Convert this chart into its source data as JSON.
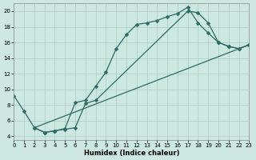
{
  "xlabel": "Humidex (Indice chaleur)",
  "bg_color": "#cce8e0",
  "grid_color": "#aaccc4",
  "line_color": "#2d6b65",
  "xlim": [
    0,
    23
  ],
  "ylim": [
    3.5,
    21
  ],
  "line1_x": [
    0,
    1,
    2,
    3,
    4,
    5,
    6,
    7,
    8,
    9,
    10,
    11,
    12,
    13,
    14,
    15,
    16,
    17,
    18,
    19,
    20,
    21,
    22,
    23
  ],
  "line1_y": [
    9.2,
    7.2,
    5.1,
    4.5,
    4.7,
    5.0,
    8.3,
    8.6,
    10.4,
    12.2,
    15.2,
    17.0,
    18.3,
    18.5,
    18.8,
    19.3,
    19.7,
    20.5,
    18.5,
    17.2,
    16.0,
    15.5,
    15.2,
    15.7
  ],
  "line2_x": [
    2,
    3,
    4,
    5,
    6,
    7,
    8,
    17,
    18,
    19,
    20,
    21,
    22,
    23
  ],
  "line2_y": [
    5.1,
    4.5,
    4.7,
    4.9,
    5.1,
    8.2,
    8.6,
    20.0,
    19.8,
    18.5,
    16.0,
    15.5,
    15.2,
    15.7
  ],
  "line3_x": [
    2,
    23
  ],
  "line3_y": [
    5.1,
    15.7
  ],
  "marker": "D",
  "marker_size": 2.5,
  "line_width": 0.9,
  "xticks": [
    0,
    1,
    2,
    3,
    4,
    5,
    6,
    7,
    8,
    9,
    10,
    11,
    12,
    13,
    14,
    15,
    16,
    17,
    18,
    19,
    20,
    21,
    22,
    23
  ],
  "yticks": [
    4,
    6,
    8,
    10,
    12,
    14,
    16,
    18,
    20
  ],
  "tick_fontsize": 5.0,
  "xlabel_fontsize": 6.0
}
